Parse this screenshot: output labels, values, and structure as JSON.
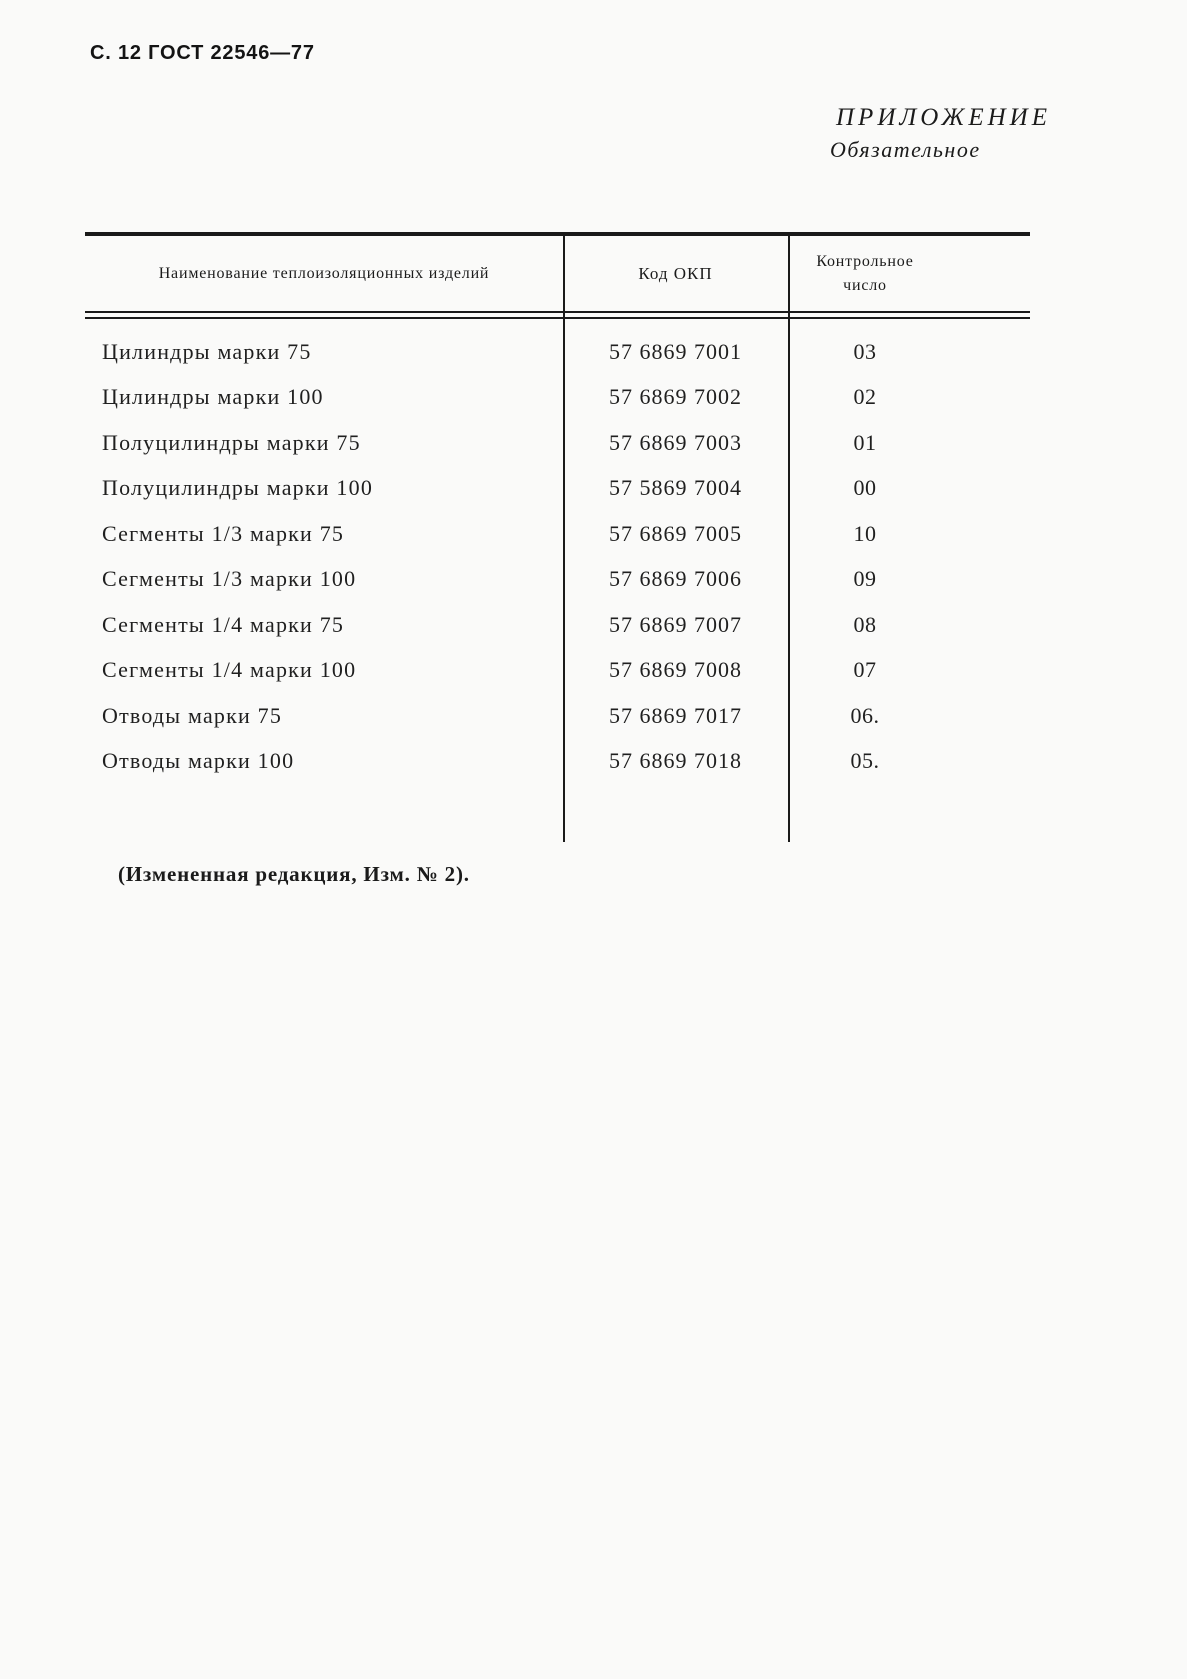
{
  "page": {
    "header": "С. 12 ГОСТ 22546—77",
    "appendix_title": "ПРИЛОЖЕНИЕ",
    "appendix_subtitle": "Обязательное",
    "footnote": "(Измененная редакция, Изм. № 2)."
  },
  "table": {
    "columns": [
      "Наименование теплоизоляционных изделий",
      "Код ОКП",
      "Контрольное число"
    ],
    "rows": [
      {
        "name": "Цилиндры марки 75",
        "code": "57 6869 7001",
        "control": "03"
      },
      {
        "name": "Цилиндры марки 100",
        "code": "57 6869 7002",
        "control": "02"
      },
      {
        "name": "Полуцилиндры марки 75",
        "code": "57 6869 7003",
        "control": "01"
      },
      {
        "name": "Полуцилиндры марки 100",
        "code": "57 5869 7004",
        "control": "00"
      },
      {
        "name": "Сегменты 1/3 марки 75",
        "code": "57 6869 7005",
        "control": "10"
      },
      {
        "name": "Сегменты 1/3 марки 100",
        "code": "57 6869 7006",
        "control": "09"
      },
      {
        "name": "Сегменты 1/4 марки 75",
        "code": "57 6869 7007",
        "control": "08"
      },
      {
        "name": "Сегменты 1/4 марки 100",
        "code": "57 6869 7008",
        "control": "07"
      },
      {
        "name": "Отводы марки 75",
        "code": "57 6869 7017",
        "control": "06."
      },
      {
        "name": "Отводы марки 100",
        "code": "57 6869 7018",
        "control": "05."
      }
    ]
  },
  "colors": {
    "ink": "#1a1a1a",
    "paper": "#fafaf9"
  }
}
